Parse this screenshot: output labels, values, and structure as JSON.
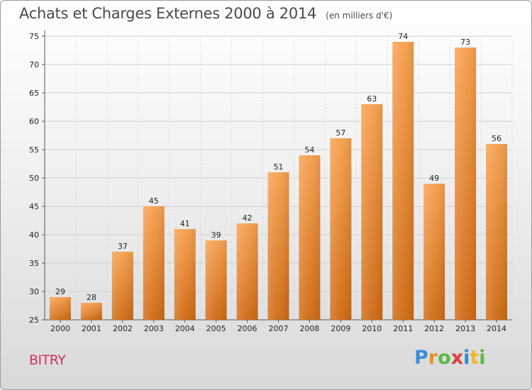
{
  "chart_data": {
    "type": "bar",
    "title": "Achats et Charges Externes 2000 à 2014",
    "subtitle": "(en milliers d'€)",
    "categories": [
      "2000",
      "2001",
      "2002",
      "2003",
      "2004",
      "2005",
      "2006",
      "2007",
      "2008",
      "2009",
      "2010",
      "2011",
      "2012",
      "2013",
      "2014"
    ],
    "values": [
      29,
      28,
      37,
      45,
      41,
      39,
      42,
      51,
      54,
      57,
      63,
      74,
      49,
      73,
      56
    ],
    "ylim": [
      25,
      75
    ],
    "yticks": [
      25,
      30,
      35,
      40,
      45,
      50,
      55,
      60,
      65,
      70,
      75
    ],
    "grid": true,
    "bar_color_top": "#f7a04f",
    "bar_color_bottom": "#cf6a12"
  },
  "commune": "BITRY",
  "logo": {
    "p": "P",
    "r": "r",
    "o": "o",
    "x": "x",
    "i1": "i",
    "t": "t",
    "i2": "i"
  }
}
